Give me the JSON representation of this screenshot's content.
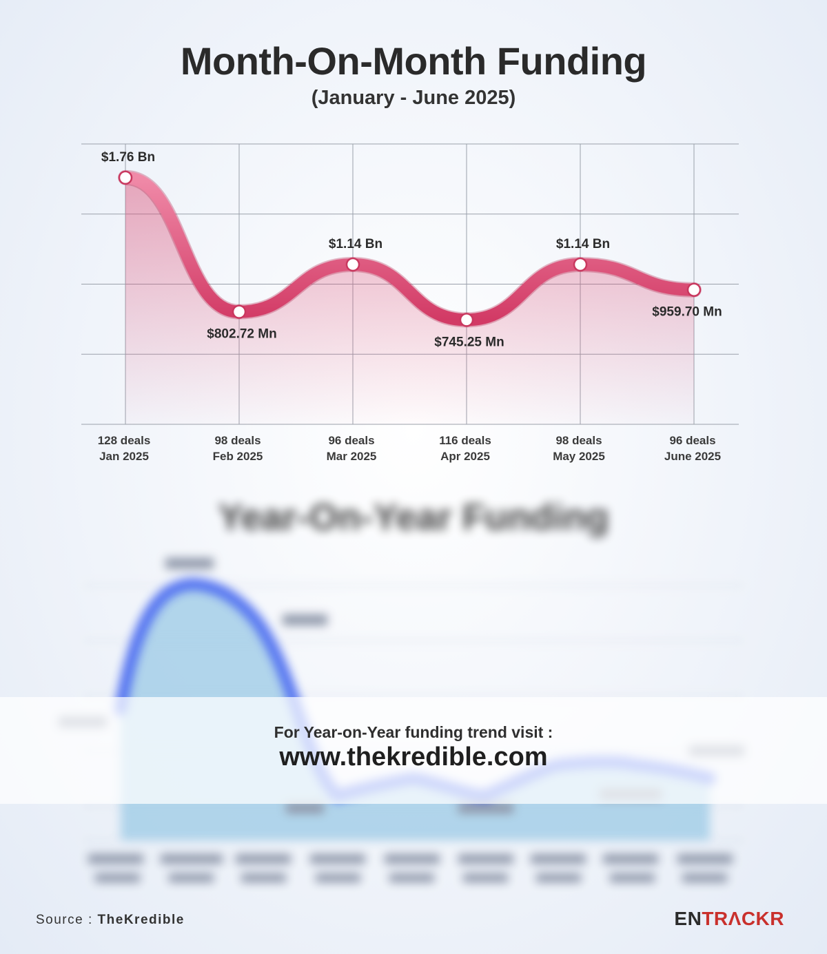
{
  "title": "Month-On-Month Funding",
  "subtitle": "(January - June 2025)",
  "chart_data": {
    "type": "line",
    "title": "Month-On-Month Funding",
    "subtitle": "(January - June 2025)",
    "categories": [
      "Jan 2025",
      "Feb 2025",
      "Mar 2025",
      "Apr 2025",
      "May 2025",
      "June 2025"
    ],
    "deals": [
      "128 deals",
      "98 deals",
      "96 deals",
      "116 deals",
      "98 deals",
      "96 deals"
    ],
    "values_mn": [
      1760,
      802.72,
      1140,
      745.25,
      1140,
      959.7
    ],
    "value_labels": [
      "$1.76 Bn",
      "$802.72 Mn",
      "$1.14 Bn",
      "$745.25 Mn",
      "$1.14 Bn",
      "$959.70 Mn"
    ],
    "ylim": [
      0,
      2000
    ],
    "grid": true,
    "line_color": "#d9466f",
    "fill_color": "#e8a2b6"
  },
  "blurred_section": {
    "title": "Year-On-Year Funding",
    "line_color": "#4b6cf0",
    "fill_color": "#9ccbe6"
  },
  "banner": {
    "line1": "For Year-on-Year funding trend visit :",
    "line2": "www.thekredible.com"
  },
  "footer": {
    "source_label": "Source :",
    "source_name": "TheKredible",
    "logo_part1": "EN",
    "logo_part2": "TRΛCKR"
  }
}
